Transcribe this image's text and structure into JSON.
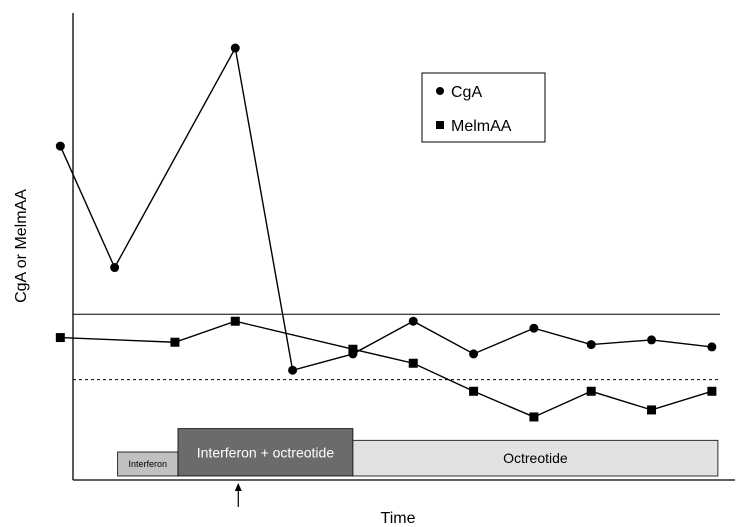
{
  "chart_data": {
    "type": "line",
    "xlabel": "Time",
    "ylabel": "CgA or MelmAA",
    "grid": false,
    "legend": "top-right",
    "x": [
      1,
      2,
      3,
      4,
      5,
      6,
      7,
      8,
      9,
      10,
      11,
      12
    ],
    "xlim": [
      0,
      12.2
    ],
    "ylim": [
      0,
      100
    ],
    "series": [
      {
        "name": "CgA",
        "marker": "circle",
        "color": "#000000",
        "points": [
          [
            1,
            71.5
          ],
          [
            1.9,
            45.5
          ],
          [
            3.9,
            92.5
          ],
          [
            4.85,
            23.5
          ],
          [
            5.85,
            27
          ],
          [
            6.85,
            34
          ],
          [
            7.85,
            27
          ],
          [
            8.85,
            32.5
          ],
          [
            9.8,
            29
          ],
          [
            10.8,
            30
          ],
          [
            11.8,
            28.5
          ]
        ]
      },
      {
        "name": "MelmAA",
        "marker": "square",
        "color": "#000000",
        "points": [
          [
            1,
            30.5
          ],
          [
            2.9,
            29.5
          ],
          [
            3.9,
            34
          ],
          [
            5.85,
            28
          ],
          [
            6.85,
            25
          ],
          [
            7.85,
            19
          ],
          [
            8.85,
            13.5
          ],
          [
            9.8,
            19
          ],
          [
            10.8,
            15
          ],
          [
            11.8,
            19
          ]
        ]
      }
    ],
    "reference_lines": [
      {
        "style": "solid",
        "y": 35.5
      },
      {
        "style": "dashed",
        "y": 21.5
      }
    ],
    "treatment_bars": [
      {
        "label": "Interferon",
        "start": 1.95,
        "end": 2.95,
        "level": 6,
        "color": "#c0c0c0"
      },
      {
        "label": "Interferon + octreotide",
        "start": 2.95,
        "end": 5.85,
        "level": 11,
        "color": "#6b6b6b"
      },
      {
        "label": "Octreotide",
        "start": 5.85,
        "end": 11.9,
        "level": 8.5,
        "color": "#e2e2e2"
      }
    ],
    "arrow_x": 3.95
  }
}
